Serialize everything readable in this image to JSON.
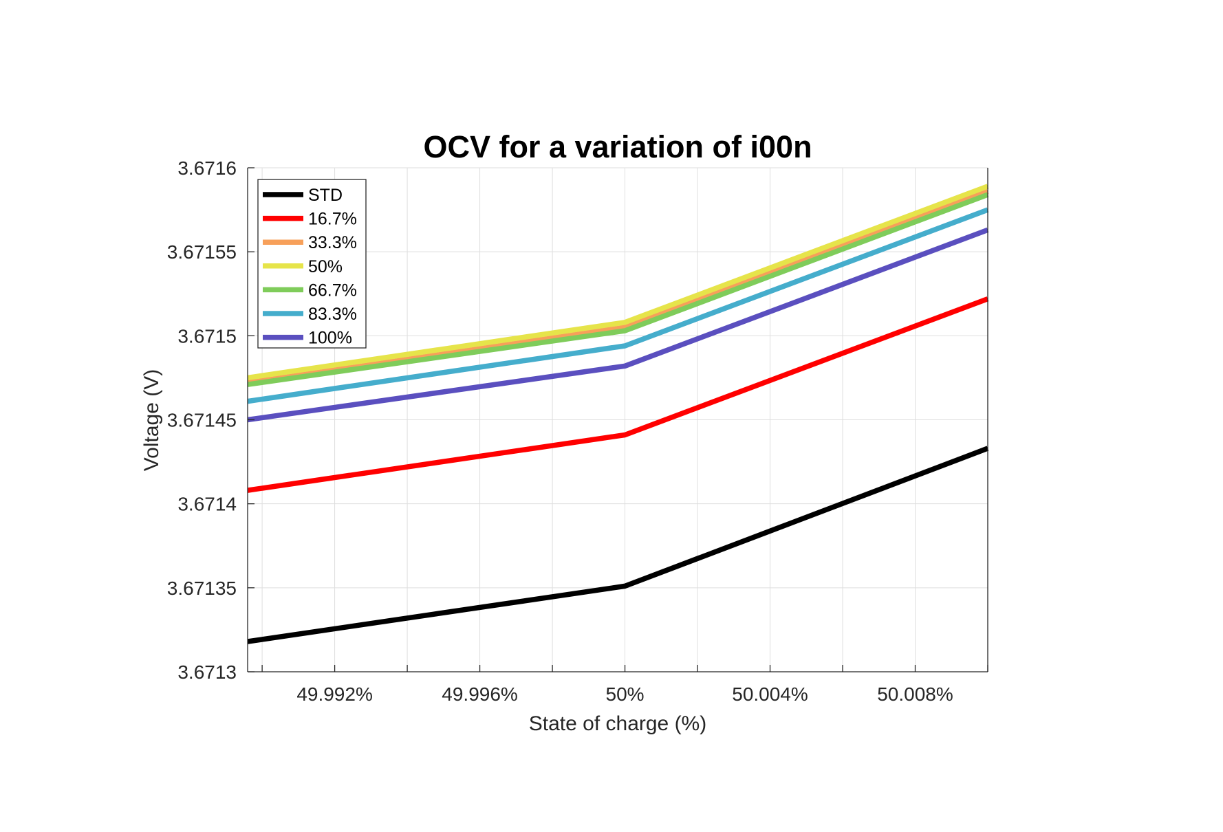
{
  "chart_data": {
    "type": "line",
    "title": "OCV for a variation of i00n",
    "xlabel": "State of charge (%)",
    "ylabel": "Voltage (V)",
    "xlim": [
      49.9896,
      50.01
    ],
    "ylim": [
      3.6713,
      3.6716
    ],
    "x_ticks": [
      49.992,
      49.996,
      50.0,
      50.004,
      50.008
    ],
    "x_tick_labels": [
      "49.992%",
      "49.996%",
      "50%",
      "50.004%",
      "50.008%"
    ],
    "y_ticks": [
      3.6713,
      3.67135,
      3.6714,
      3.67145,
      3.6715,
      3.67155,
      3.6716
    ],
    "y_tick_labels": [
      "3.6713",
      "3.67135",
      "3.6714",
      "3.67145",
      "3.6715",
      "3.67155",
      "3.6716"
    ],
    "grid": true,
    "legend_position": "top-left",
    "x": [
      49.9896,
      50.0,
      50.01
    ],
    "series": [
      {
        "name": "STD",
        "color": "#000000",
        "values": [
          3.671318,
          3.671351,
          3.671433
        ]
      },
      {
        "name": "16.7%",
        "color": "#ff0000",
        "values": [
          3.671408,
          3.671441,
          3.671522
        ]
      },
      {
        "name": "33.3%",
        "color": "#f7a05a",
        "values": [
          3.671472,
          3.671505,
          3.671586
        ]
      },
      {
        "name": "50%",
        "color": "#e6e44a",
        "values": [
          3.671475,
          3.671508,
          3.671589
        ]
      },
      {
        "name": "66.7%",
        "color": "#7fcc5a",
        "values": [
          3.671471,
          3.671503,
          3.671584
        ]
      },
      {
        "name": "83.3%",
        "color": "#45adcc",
        "values": [
          3.671461,
          3.671494,
          3.671575
        ]
      },
      {
        "name": "100%",
        "color": "#5a4fbf",
        "values": [
          3.67145,
          3.671482,
          3.671563
        ]
      }
    ]
  }
}
